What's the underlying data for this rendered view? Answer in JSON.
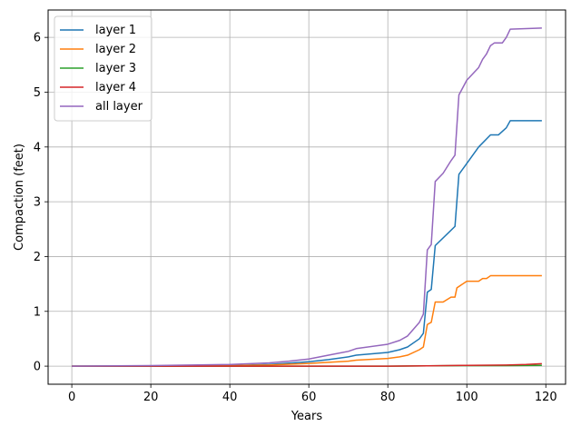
{
  "chart_data": {
    "type": "line",
    "title": "",
    "xlabel": "Years",
    "ylabel": "Compaction (feet)",
    "xlim": [
      -6,
      125
    ],
    "ylim": [
      -0.33,
      6.5
    ],
    "xticks": [
      0,
      20,
      40,
      60,
      80,
      100,
      120
    ],
    "yticks": [
      0,
      1,
      2,
      3,
      4,
      5,
      6
    ],
    "grid": true,
    "legend_position": "top-left",
    "series": [
      {
        "name": "layer 1",
        "color": "#1f77b4",
        "points": [
          [
            0,
            0
          ],
          [
            20,
            0
          ],
          [
            40,
            0.01
          ],
          [
            50,
            0.03
          ],
          [
            60,
            0.08
          ],
          [
            65,
            0.12
          ],
          [
            70,
            0.17
          ],
          [
            72,
            0.2
          ],
          [
            80,
            0.25
          ],
          [
            83,
            0.3
          ],
          [
            85,
            0.35
          ],
          [
            88,
            0.5
          ],
          [
            89,
            0.6
          ],
          [
            90,
            1.35
          ],
          [
            91,
            1.4
          ],
          [
            92,
            2.2
          ],
          [
            97,
            2.55
          ],
          [
            98,
            3.5
          ],
          [
            100,
            3.7
          ],
          [
            103,
            4.0
          ],
          [
            106,
            4.22
          ],
          [
            108,
            4.22
          ],
          [
            110,
            4.35
          ],
          [
            111,
            4.48
          ],
          [
            119,
            4.48
          ]
        ]
      },
      {
        "name": "layer 2",
        "color": "#ff7f0e",
        "points": [
          [
            0,
            0
          ],
          [
            20,
            0
          ],
          [
            40,
            0.01
          ],
          [
            50,
            0.02
          ],
          [
            60,
            0.05
          ],
          [
            65,
            0.07
          ],
          [
            70,
            0.09
          ],
          [
            72,
            0.11
          ],
          [
            80,
            0.14
          ],
          [
            83,
            0.17
          ],
          [
            85,
            0.2
          ],
          [
            88,
            0.3
          ],
          [
            89,
            0.35
          ],
          [
            90,
            0.76
          ],
          [
            91,
            0.8
          ],
          [
            92,
            1.17
          ],
          [
            94,
            1.17
          ],
          [
            96,
            1.26
          ],
          [
            97,
            1.26
          ],
          [
            97.5,
            1.43
          ],
          [
            100,
            1.55
          ],
          [
            103,
            1.55
          ],
          [
            104,
            1.6
          ],
          [
            105,
            1.6
          ],
          [
            106,
            1.65
          ],
          [
            119,
            1.65
          ]
        ]
      },
      {
        "name": "layer 3",
        "color": "#2ca02c",
        "points": [
          [
            0,
            0
          ],
          [
            40,
            0
          ],
          [
            80,
            0
          ],
          [
            90,
            0.005
          ],
          [
            100,
            0.01
          ],
          [
            110,
            0.01
          ],
          [
            119,
            0.015
          ]
        ]
      },
      {
        "name": "layer 4",
        "color": "#d62728",
        "points": [
          [
            0,
            0
          ],
          [
            40,
            0
          ],
          [
            80,
            0
          ],
          [
            90,
            0.005
          ],
          [
            100,
            0.015
          ],
          [
            110,
            0.02
          ],
          [
            115,
            0.03
          ],
          [
            119,
            0.045
          ]
        ]
      },
      {
        "name": "all layer",
        "color": "#9467bd",
        "points": [
          [
            0,
            0
          ],
          [
            20,
            0.01
          ],
          [
            40,
            0.03
          ],
          [
            50,
            0.06
          ],
          [
            55,
            0.09
          ],
          [
            60,
            0.13
          ],
          [
            65,
            0.2
          ],
          [
            70,
            0.27
          ],
          [
            72,
            0.32
          ],
          [
            80,
            0.4
          ],
          [
            83,
            0.47
          ],
          [
            85,
            0.55
          ],
          [
            88,
            0.8
          ],
          [
            89,
            0.95
          ],
          [
            90,
            2.12
          ],
          [
            91,
            2.22
          ],
          [
            92,
            3.37
          ],
          [
            94,
            3.52
          ],
          [
            96,
            3.75
          ],
          [
            97,
            3.85
          ],
          [
            98,
            4.95
          ],
          [
            100,
            5.22
          ],
          [
            103,
            5.45
          ],
          [
            104,
            5.6
          ],
          [
            105,
            5.7
          ],
          [
            106,
            5.85
          ],
          [
            107,
            5.9
          ],
          [
            109,
            5.9
          ],
          [
            110,
            6.0
          ],
          [
            111,
            6.15
          ],
          [
            119,
            6.17
          ]
        ]
      }
    ]
  }
}
